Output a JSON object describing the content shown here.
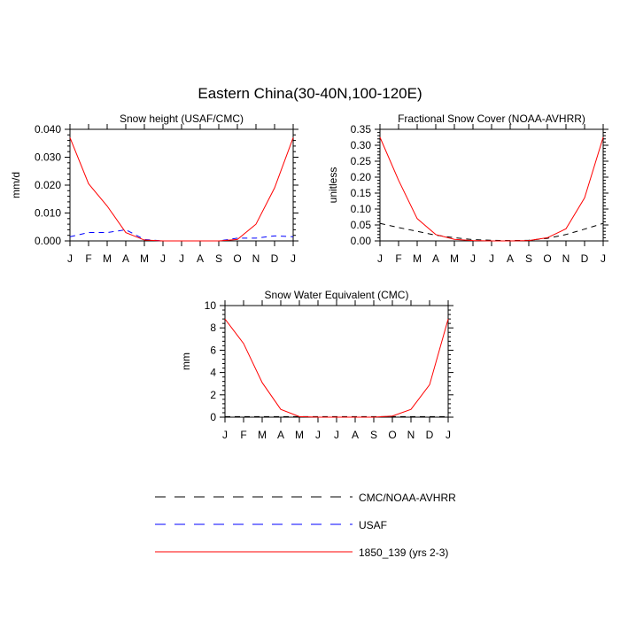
{
  "title": "Eastern China(30-40N,100-120E)",
  "colors": {
    "cmc_noaa": "#000000",
    "usaf": "#0000ff",
    "model": "#ff0000"
  },
  "legend": [
    {
      "label": "CMC/NOAA-AVHRR",
      "color": "#000000",
      "dash": "dashed"
    },
    {
      "label": "USAF",
      "color": "#0000ff",
      "dash": "dashed"
    },
    {
      "label": "1850_139 (yrs 2-3)",
      "color": "#ff0000",
      "dash": "solid"
    }
  ],
  "chart_data": [
    {
      "type": "line",
      "title": "Snow height (USAF/CMC)",
      "xlabel": "",
      "ylabel": "mm/d",
      "categories": [
        "J",
        "F",
        "M",
        "A",
        "M",
        "J",
        "J",
        "A",
        "S",
        "O",
        "N",
        "D",
        "J"
      ],
      "ylim": [
        0,
        0.04
      ],
      "yticks": [
        "0.000",
        "0.010",
        "0.020",
        "0.030",
        "0.040"
      ],
      "series": [
        {
          "name": "USAF",
          "style": "dashed",
          "color": "#0000ff",
          "values": [
            0.0015,
            0.003,
            0.003,
            0.004,
            0.0005,
            0.0,
            0.0,
            0.0,
            0.0,
            0.001,
            0.001,
            0.0018,
            0.0015
          ]
        },
        {
          "name": "1850_139 (yrs 2-3)",
          "style": "solid",
          "color": "#ff0000",
          "values": [
            0.037,
            0.0205,
            0.0125,
            0.003,
            0.0003,
            0.0,
            0.0,
            0.0,
            0.0,
            0.0005,
            0.006,
            0.019,
            0.037
          ]
        }
      ]
    },
    {
      "type": "line",
      "title": "Fractional Snow Cover (NOAA-AVHRR)",
      "xlabel": "",
      "ylabel": "unitless",
      "categories": [
        "J",
        "F",
        "M",
        "A",
        "M",
        "J",
        "J",
        "A",
        "S",
        "O",
        "N",
        "D",
        "J"
      ],
      "ylim": [
        0,
        0.35
      ],
      "yticks": [
        "0.00",
        "0.05",
        "0.10",
        "0.15",
        "0.20",
        "0.25",
        "0.30",
        "0.35"
      ],
      "series": [
        {
          "name": "CMC/NOAA-AVHRR",
          "style": "dashed",
          "color": "#000000",
          "values": [
            0.055,
            0.042,
            0.03,
            0.018,
            0.01,
            0.004,
            0.002,
            0.001,
            0.002,
            0.008,
            0.02,
            0.037,
            0.055
          ]
        },
        {
          "name": "1850_139 (yrs 2-3)",
          "style": "solid",
          "color": "#ff0000",
          "values": [
            0.325,
            0.19,
            0.07,
            0.02,
            0.005,
            0.001,
            0.0,
            0.0,
            0.001,
            0.01,
            0.038,
            0.135,
            0.325
          ]
        }
      ]
    },
    {
      "type": "line",
      "title": "Snow Water Equivalent (CMC)",
      "xlabel": "",
      "ylabel": "mm",
      "categories": [
        "J",
        "F",
        "M",
        "A",
        "M",
        "J",
        "J",
        "A",
        "S",
        "O",
        "N",
        "D",
        "J"
      ],
      "ylim": [
        0,
        10
      ],
      "yticks": [
        "0",
        "2",
        "4",
        "6",
        "8",
        "10"
      ],
      "series": [
        {
          "name": "CMC/NOAA-AVHRR",
          "style": "dashed",
          "color": "#000000",
          "values": [
            0.05,
            0.05,
            0.05,
            0.05,
            0.05,
            0.05,
            0.05,
            0.05,
            0.05,
            0.05,
            0.05,
            0.05,
            0.05
          ]
        },
        {
          "name": "1850_139 (yrs 2-3)",
          "style": "solid",
          "color": "#ff0000",
          "values": [
            8.8,
            6.6,
            3.1,
            0.7,
            0.05,
            0.0,
            0.0,
            0.0,
            0.0,
            0.1,
            0.7,
            2.9,
            8.8
          ]
        }
      ]
    }
  ]
}
